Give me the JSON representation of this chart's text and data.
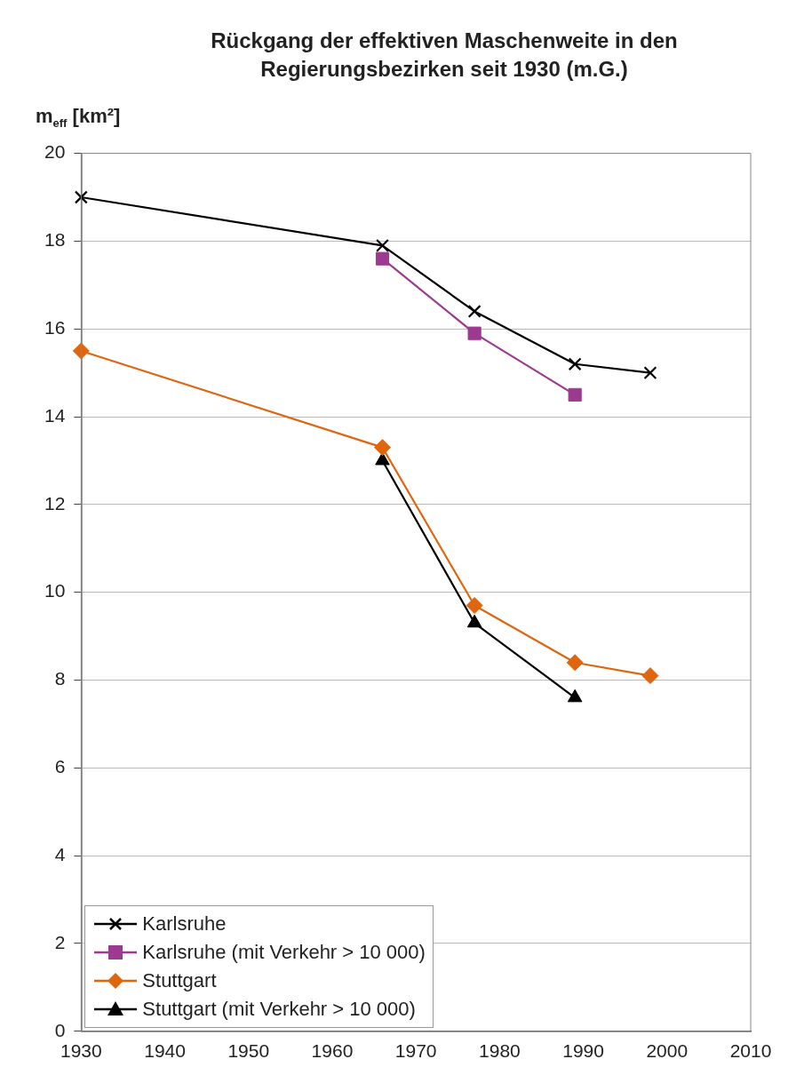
{
  "chart_data": {
    "type": "line",
    "title": "Rückgang der effektiven Maschenweite in den Regierungsbezirken seit 1930 (m.G.)",
    "ylabel": "m$_{eff}$ [km²]",
    "xlim": [
      1930,
      2010
    ],
    "xticks": [
      1930,
      1940,
      1950,
      1960,
      1970,
      1980,
      1990,
      2000,
      2010
    ],
    "ylim": [
      0,
      20
    ],
    "yticks": [
      0,
      2,
      4,
      6,
      8,
      10,
      12,
      14,
      16,
      18,
      20
    ],
    "grid": "y",
    "legend": "bottom left",
    "series": [
      {
        "name": "Karlsruhe",
        "color": "#000000",
        "marker": "cross",
        "x": [
          1930,
          1966,
          1977,
          1989,
          1998
        ],
        "values": [
          19.0,
          17.9,
          16.4,
          15.2,
          15.0
        ]
      },
      {
        "name": "Karlsruhe (mit Verkehr > 10 000)",
        "color": "#9b3a8f",
        "marker": "square",
        "x": [
          1966,
          1977,
          1989
        ],
        "values": [
          17.6,
          15.9,
          14.5
        ]
      },
      {
        "name": "Stuttgart",
        "color": "#e0650f",
        "marker": "diamond",
        "x": [
          1930,
          1966,
          1977,
          1989,
          1998
        ],
        "values": [
          15.5,
          13.3,
          9.7,
          8.4,
          8.1
        ]
      },
      {
        "name": "Stuttgart (mit Verkehr > 10 000)",
        "color": "#000000",
        "marker": "triangle",
        "x": [
          1966,
          1977,
          1989
        ],
        "values": [
          13.0,
          9.3,
          7.6
        ]
      }
    ]
  }
}
